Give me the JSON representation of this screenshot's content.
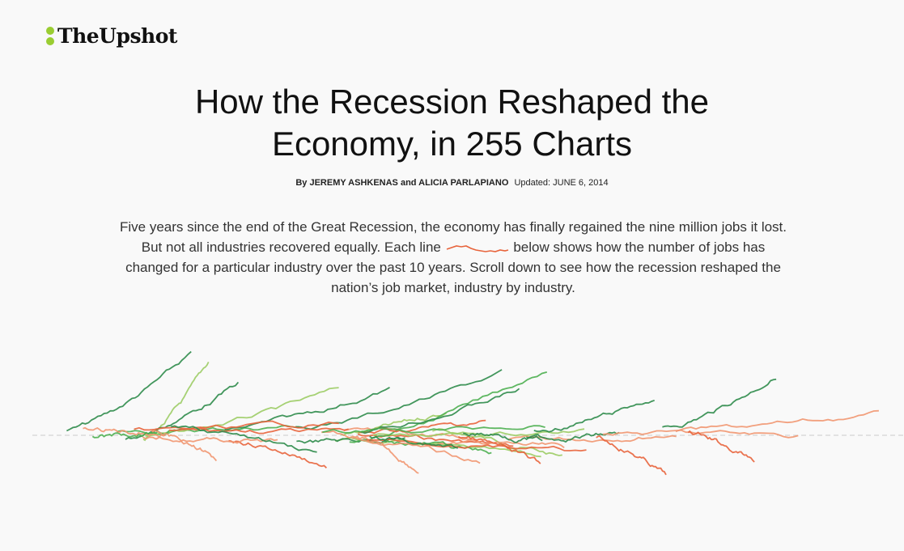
{
  "masthead": {
    "logo": "TheUpshot",
    "logo_icon": "two-dot-logo-icon"
  },
  "article": {
    "title_line1": "How the Recession Reshaped the",
    "title_line2": "Economy, in 255 Charts",
    "byline_authors": "By JEREMY ASHKENAS and ALICIA PARLAPIANO",
    "updated": "Updated: JUNE 6, 2014",
    "intro_before": "Five years since the end of the Great Recession, the economy has finally regained the nine million jobs it lost. But not all industries recovered equally. Each line",
    "intro_after": "below shows how the number of jobs has changed for a particular industry over the past 10 years. Scroll down to see how the recession reshaped the nation’s job market, industry by industry."
  },
  "colors": {
    "logo_dots": "#9acd32",
    "decline": "#e8643c",
    "decline_light": "#f19670",
    "growth_dark": "#2e8b4a",
    "growth": "#4caf50",
    "growth_light": "#9ccc65",
    "baseline": "#cccccc"
  },
  "chart_data": {
    "type": "line",
    "series_count_visible": 42
  }
}
